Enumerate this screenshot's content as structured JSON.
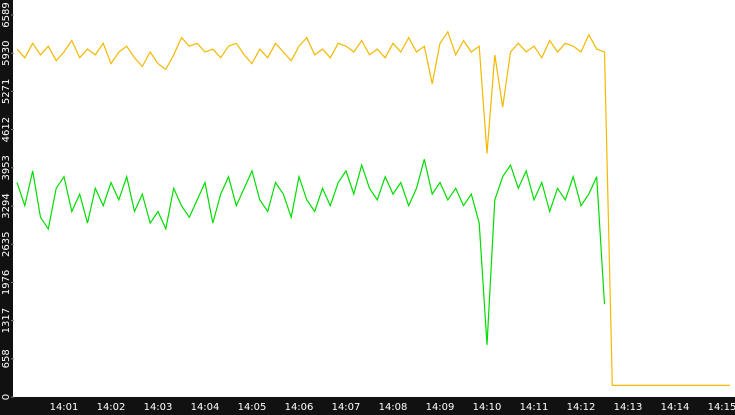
{
  "chart_data": {
    "type": "line",
    "categories": [
      null,
      null,
      null,
      null,
      null,
      null,
      "14:01",
      null,
      null,
      null,
      null,
      null,
      "14:02",
      null,
      null,
      null,
      null,
      null,
      "14:03",
      null,
      null,
      null,
      null,
      null,
      "14:04",
      null,
      null,
      null,
      null,
      null,
      "14:05",
      null,
      null,
      null,
      null,
      null,
      "14:06",
      null,
      null,
      null,
      null,
      null,
      "14:07",
      null,
      null,
      null,
      null,
      null,
      "14:08",
      null,
      null,
      null,
      null,
      null,
      "14:09",
      null,
      null,
      null,
      null,
      null,
      "14:10",
      null,
      null,
      null,
      null,
      null,
      "14:11",
      null,
      null,
      null,
      null,
      null,
      "14:12",
      null,
      null,
      null,
      null,
      null,
      "14:13",
      null,
      null,
      null,
      null,
      null,
      "14:14",
      null,
      null,
      null,
      null,
      null,
      "14:15",
      null
    ],
    "series": [
      {
        "color": "#f4b800",
        "values": [
          6000,
          5850,
          6100,
          5900,
          6050,
          5800,
          5950,
          6150,
          5850,
          6000,
          5900,
          6100,
          5750,
          5950,
          6050,
          5850,
          5700,
          5950,
          5750,
          5650,
          5900,
          6200,
          6050,
          6100,
          5950,
          6000,
          5850,
          6050,
          6100,
          5900,
          5750,
          6000,
          5850,
          6100,
          5950,
          5800,
          6050,
          6200,
          5900,
          6000,
          5850,
          6100,
          6050,
          5950,
          6150,
          5900,
          6000,
          5850,
          6100,
          5950,
          6200,
          5950,
          6050,
          5400,
          6100,
          6300,
          5900,
          6150,
          5950,
          6050,
          4200,
          5900,
          5000,
          5950,
          6100,
          5950,
          6050,
          5850,
          6150,
          5950,
          6100,
          6050,
          5950,
          6250,
          6000,
          5950,
          200,
          200,
          200,
          200,
          200,
          200,
          200,
          200,
          200,
          200,
          200,
          200,
          200,
          200,
          200,
          200
        ]
      },
      {
        "color": "#00dd00",
        "values": [
          3700,
          3300,
          3900,
          3100,
          2900,
          3600,
          3800,
          3200,
          3500,
          3000,
          3600,
          3300,
          3700,
          3400,
          3800,
          3200,
          3500,
          3000,
          3200,
          2900,
          3600,
          3300,
          3100,
          3400,
          3700,
          3000,
          3500,
          3800,
          3300,
          3600,
          3900,
          3400,
          3200,
          3700,
          3500,
          3100,
          3800,
          3400,
          3200,
          3600,
          3300,
          3700,
          3900,
          3500,
          4000,
          3600,
          3400,
          3800,
          3500,
          3700,
          3300,
          3600,
          4100,
          3500,
          3700,
          3400,
          3600,
          3300,
          3500,
          3000,
          900,
          3400,
          3800,
          4000,
          3600,
          3900,
          3400,
          3700,
          3200,
          3600,
          3400,
          3800,
          3300,
          3500,
          3800,
          1600,
          null,
          null,
          null,
          null,
          null,
          null,
          null,
          null,
          null,
          null,
          null,
          null,
          null,
          null,
          null,
          null
        ]
      }
    ],
    "ylim": [
      0,
      6589
    ],
    "yticks": [
      0,
      658,
      1317,
      1976,
      2635,
      3294,
      3953,
      4612,
      5271,
      5930,
      6589
    ]
  }
}
